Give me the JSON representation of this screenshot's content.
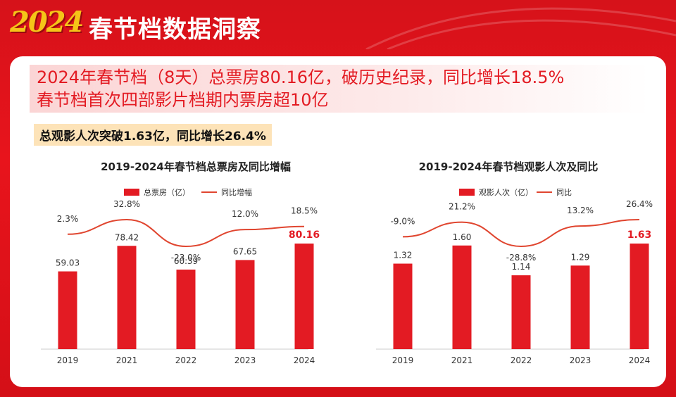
{
  "header": {
    "year_logo": "2024",
    "title": "春节档数据洞察"
  },
  "headline": {
    "line1": "2024年春节档（8天）总票房80.16亿，破历史纪录，同比增长18.5%",
    "line2": "春节档首次四部影片档期内票房超10亿"
  },
  "sub_headline": "总观影人次突破1.63亿，同比增长26.4%",
  "colors": {
    "bar": "#e31b23",
    "line": "#e0452f",
    "highlight": "#e31b23"
  },
  "chart_data": [
    {
      "type": "bar",
      "title": "2019-2024年春节档总票房及同比增幅",
      "legend": {
        "bar": "总票房（亿）",
        "line": "同比增幅"
      },
      "categories": [
        "2019",
        "2021",
        "2022",
        "2023",
        "2024"
      ],
      "values": [
        59.03,
        78.42,
        60.39,
        67.65,
        80.16
      ],
      "value_labels": [
        "59.03",
        "78.42",
        "60.39",
        "67.65",
        "80.16"
      ],
      "growth": [
        2.3,
        32.8,
        -23.0,
        12.0,
        18.5
      ],
      "growth_labels": [
        "2.3%",
        "32.8%",
        "-23.0%",
        "12.0%",
        "18.5%"
      ],
      "highlight_index": 4
    },
    {
      "type": "bar",
      "title": "2019-2024年春节档观影人次及同比",
      "legend": {
        "bar": "观影人次（亿）",
        "line": "同比"
      },
      "categories": [
        "2019",
        "2021",
        "2022",
        "2023",
        "2024"
      ],
      "values": [
        1.32,
        1.6,
        1.14,
        1.29,
        1.63
      ],
      "value_labels": [
        "1.32",
        "1.60",
        "1.14",
        "1.29",
        "1.63"
      ],
      "growth": [
        -9.0,
        21.2,
        -28.8,
        13.2,
        26.4
      ],
      "growth_labels": [
        "-9.0%",
        "21.2%",
        "-28.8%",
        "13.2%",
        "26.4%"
      ],
      "highlight_index": 4
    }
  ]
}
